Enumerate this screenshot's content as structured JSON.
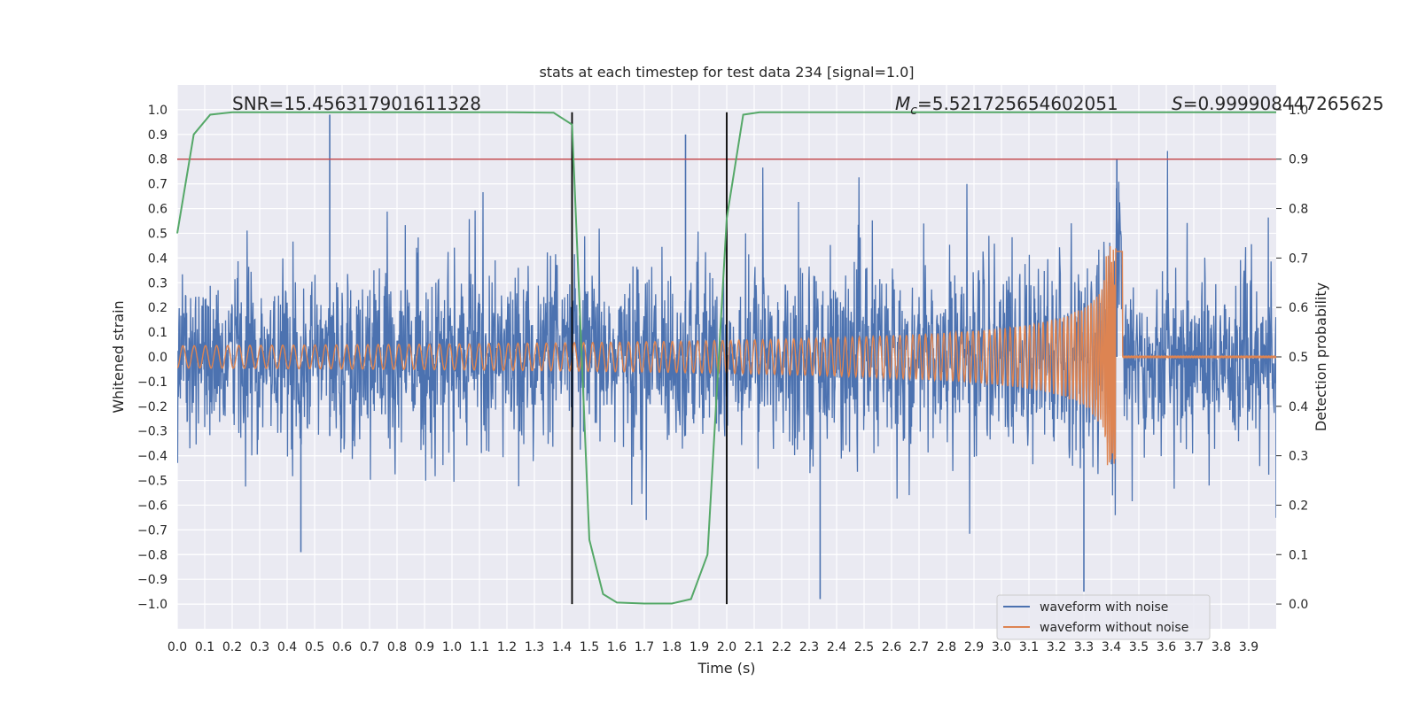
{
  "chart_data": {
    "type": "line",
    "title": "stats at each timestep for test data 234 [signal=1.0]",
    "xlabel": "Time (s)",
    "ylabel": "Whitened strain",
    "y2label": "Detection probability",
    "xlim": [
      0.0,
      4.0
    ],
    "ylim": [
      -1.1,
      1.1
    ],
    "y2lim": [
      -0.05,
      1.05
    ],
    "x_ticks": [
      "0.0",
      "0.1",
      "0.2",
      "0.3",
      "0.4",
      "0.5",
      "0.6",
      "0.7",
      "0.8",
      "0.9",
      "1.0",
      "1.1",
      "1.2",
      "1.3",
      "1.4",
      "1.5",
      "1.6",
      "1.7",
      "1.8",
      "1.9",
      "2.0",
      "2.1",
      "2.2",
      "2.3",
      "2.4",
      "2.5",
      "2.6",
      "2.7",
      "2.8",
      "2.9",
      "3.0",
      "3.1",
      "3.2",
      "3.3",
      "3.4",
      "3.5",
      "3.6",
      "3.7",
      "3.8",
      "3.9"
    ],
    "y_ticks": [
      "1.0",
      "0.9",
      "0.8",
      "0.7",
      "0.6",
      "0.5",
      "0.4",
      "0.3",
      "0.2",
      "0.1",
      "0.0",
      "−0.1",
      "−0.2",
      "−0.3",
      "−0.4",
      "−0.5",
      "−0.6",
      "−0.7",
      "−0.8",
      "−0.9",
      "−1.0"
    ],
    "y2_ticks": [
      "1.0",
      "0.9",
      "0.8",
      "0.7",
      "0.6",
      "0.5",
      "0.4",
      "0.3",
      "0.2",
      "0.1",
      "0.0"
    ],
    "annotations": {
      "snr": "SNR=15.456317901611328",
      "mc_symbol": "M",
      "mc_sub": "c",
      "mc_value": "=5.521725654602051",
      "s_symbol": "S",
      "s_value": "=0.999908447265625"
    },
    "threshold_prob": 0.9,
    "vertical_lines": [
      1.437,
      2.0
    ],
    "series": [
      {
        "name": "waveform with noise",
        "color": "#4c72b0",
        "approx": "noisy whitened strain, roughly +/-0.45 amplitude with spikes up to ~1.0",
        "peak_spikes": [
          [
            0.555,
            0.98
          ],
          [
            0.555,
            -0.32
          ],
          [
            1.85,
            0.9
          ],
          [
            3.3,
            -0.95
          ],
          [
            2.34,
            -0.98
          ],
          [
            3.42,
            0.8
          ],
          [
            0.45,
            -0.79
          ]
        ]
      },
      {
        "name": "waveform without noise",
        "color": "#dd8452",
        "approx": "inspiral chirp, amplitude ~0.04 at t=0 growing to ~0.45 at merger t=3.42 s, then flat",
        "merger_time": 3.42,
        "merger_amplitude": 0.45
      },
      {
        "name": "detection probability",
        "color": "#55a868",
        "axis": "right",
        "x": [
          0.0,
          0.06,
          0.12,
          0.2,
          0.3,
          0.5,
          0.8,
          1.0,
          1.2,
          1.37,
          1.437,
          1.5,
          1.55,
          1.6,
          1.7,
          1.8,
          1.87,
          1.93,
          2.0,
          2.06,
          2.12,
          2.3,
          2.6,
          3.0,
          3.5,
          4.0
        ],
        "values": [
          0.75,
          0.95,
          0.99,
          0.995,
          0.995,
          0.995,
          0.995,
          0.995,
          0.995,
          0.994,
          0.97,
          0.13,
          0.02,
          0.003,
          0.001,
          0.001,
          0.01,
          0.1,
          0.78,
          0.99,
          0.995,
          0.995,
          0.995,
          0.995,
          0.995,
          0.995
        ]
      }
    ],
    "legend": [
      "waveform with noise",
      "waveform without noise"
    ],
    "legend_position": "lower-right",
    "colors": {
      "background": "#eaeaf2",
      "grid": "#ffffff",
      "noise": "#4c72b0",
      "clean": "#dd8452",
      "probability": "#55a868",
      "threshold": "#c44e52",
      "marker": "#000000"
    }
  }
}
